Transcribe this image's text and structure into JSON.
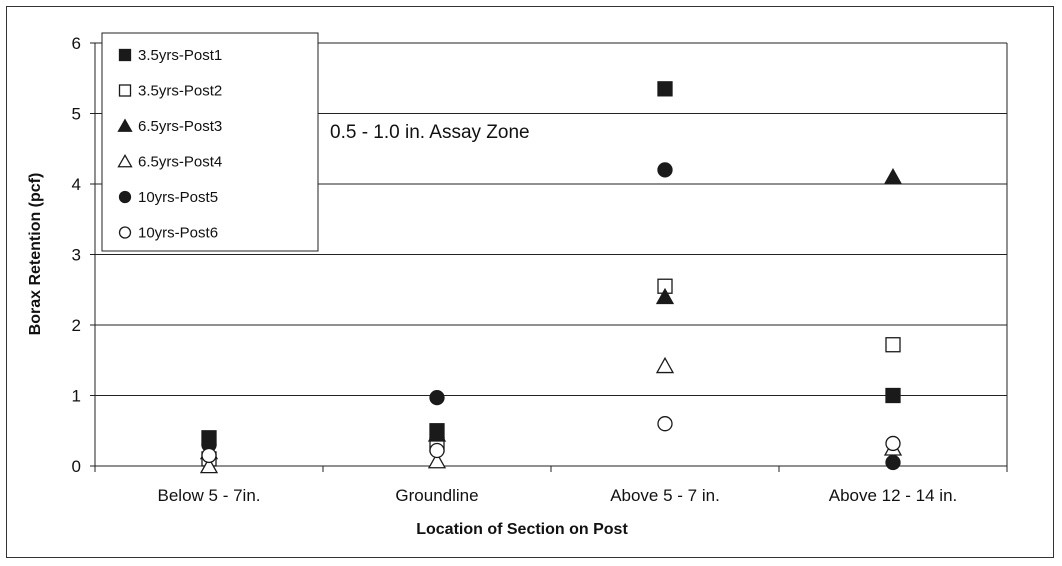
{
  "chart_data": {
    "type": "scatter",
    "title": "",
    "xlabel": "Location of Section on Post",
    "ylabel": "Borax Retention (pcf)",
    "ylim": [
      0,
      6
    ],
    "yticks": [
      0,
      1,
      2,
      3,
      4,
      5,
      6
    ],
    "grid": "horizontal",
    "legend_position": "top-left",
    "annotation": "0.5 - 1.0 in. Assay Zone",
    "categories": [
      "Below 5 - 7in.",
      "Groundline",
      "Above 5 - 7 in.",
      "Above 12 - 14 in."
    ],
    "series": [
      {
        "name": "3.5yrs-Post1",
        "marker": "square-filled",
        "values": [
          0.4,
          0.5,
          5.35,
          1.0
        ]
      },
      {
        "name": "3.5yrs-Post2",
        "marker": "square-open",
        "values": [
          0.1,
          0.3,
          2.55,
          1.72
        ]
      },
      {
        "name": "6.5yrs-Post3",
        "marker": "triangle-filled",
        "values": [
          0.2,
          0.45,
          2.4,
          4.1
        ]
      },
      {
        "name": "6.5yrs-Post4",
        "marker": "triangle-open",
        "values": [
          0.0,
          0.07,
          1.42,
          0.25
        ]
      },
      {
        "name": "10yrs-Post5",
        "marker": "circle-filled",
        "values": [
          0.3,
          0.97,
          4.2,
          0.05
        ]
      },
      {
        "name": "10yrs-Post6",
        "marker": "circle-open",
        "values": [
          0.15,
          0.22,
          0.6,
          0.32
        ]
      }
    ]
  }
}
